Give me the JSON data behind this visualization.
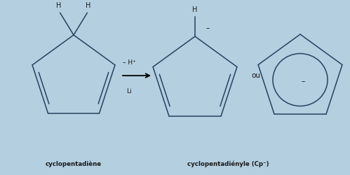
{
  "background_color": "#b3cfe0",
  "line_color": "#2a4060",
  "text_color": "#1a1a1a",
  "figsize": [
    4.99,
    2.5
  ],
  "dpi": 100,
  "label1": "cyclopentadiène",
  "label2": "cyclopentadiényle (Cp⁻)",
  "reaction_text1": "– H⁺",
  "reaction_text2": "Li",
  "ou_text": "ou",
  "H_label": "H",
  "minus_label": "–"
}
